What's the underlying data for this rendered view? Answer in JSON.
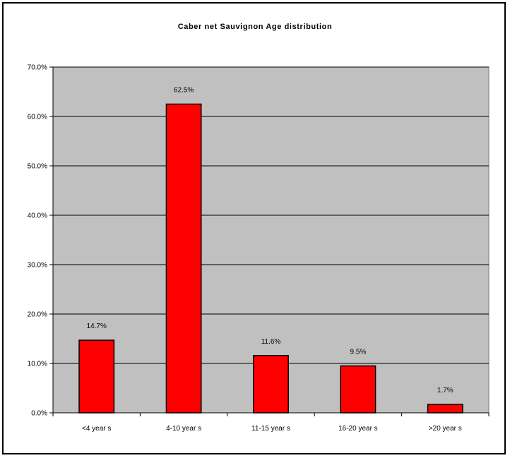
{
  "chart_data": {
    "type": "bar",
    "title": "Caber net Sauvignon Age distribution",
    "xlabel": "",
    "ylabel": "",
    "categories": [
      "<4 year s",
      "4-10 year s",
      "11-15 year s",
      "16-20 year s",
      ">20 year s"
    ],
    "values": [
      14.7,
      62.5,
      11.6,
      9.5,
      1.7
    ],
    "data_labels": [
      "14.7%",
      "62.5%",
      "11.6%",
      "9.5%",
      "1.7%"
    ],
    "ylim": [
      0,
      70
    ],
    "yticks": [
      0,
      10,
      20,
      30,
      40,
      50,
      60,
      70
    ],
    "ytick_labels": [
      "0.0%",
      "10.0%",
      "20.0%",
      "30.0%",
      "40.0%",
      "50.0%",
      "60.0%",
      "70.0%"
    ],
    "grid": true,
    "legend": "none",
    "colors": {
      "bar_fill": "#ff0000",
      "bar_stroke": "#000000",
      "plot_background": "#c0c0c0",
      "gridline": "#000000"
    }
  }
}
